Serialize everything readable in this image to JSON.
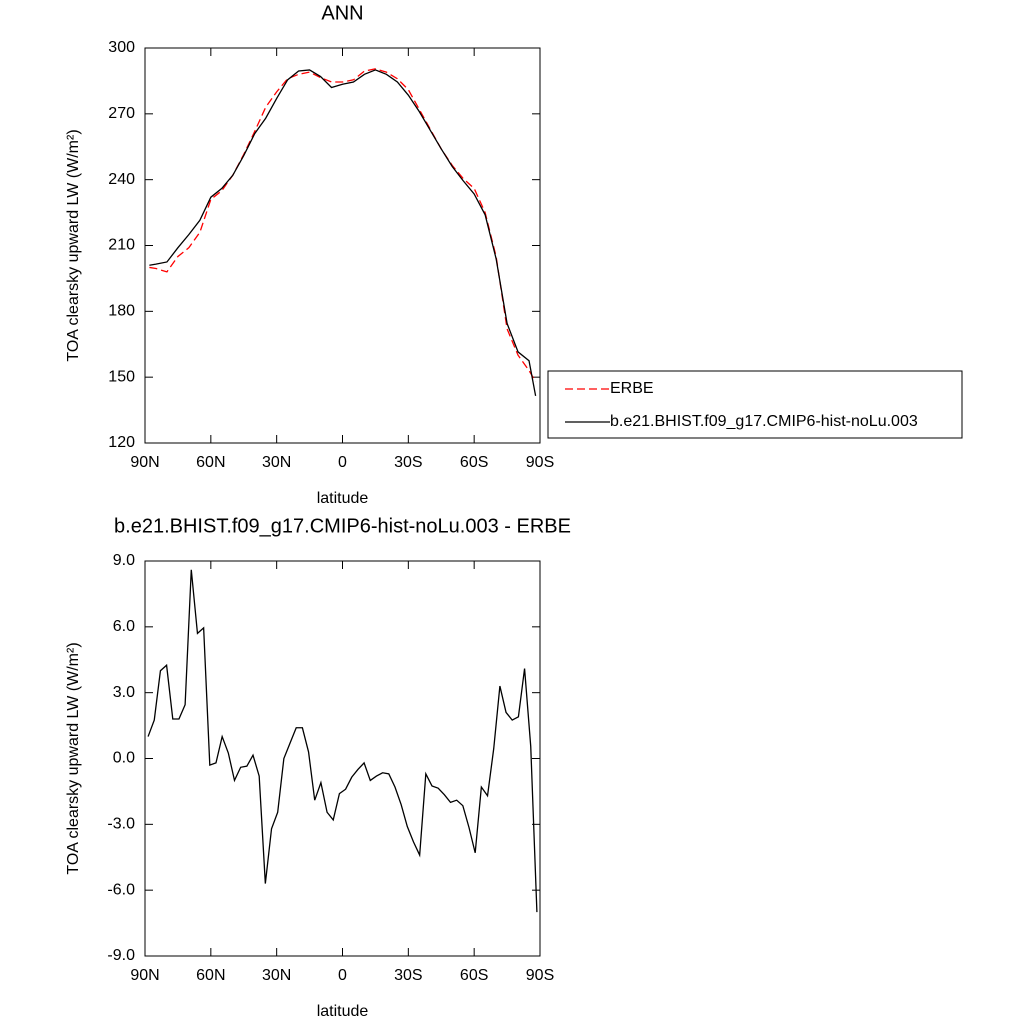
{
  "chart_data": [
    {
      "type": "line",
      "title": "ANN",
      "xlabel": "latitude",
      "ylabel": "TOA clearsky upward LW (W/m²)",
      "xlim": [
        90,
        -90
      ],
      "xticks": [
        {
          "value": 90,
          "label": "90N"
        },
        {
          "value": 60,
          "label": "60N"
        },
        {
          "value": 30,
          "label": "30N"
        },
        0,
        {
          "value": -30,
          "label": "30S"
        },
        {
          "value": -60,
          "label": "60S"
        },
        {
          "value": -90,
          "label": "90S"
        }
      ],
      "ylim": [
        120,
        300
      ],
      "yticks": [
        120,
        150,
        180,
        210,
        240,
        270,
        300
      ],
      "legend": "right",
      "x": [
        88,
        85,
        80,
        75,
        70,
        65,
        60,
        55,
        50,
        45,
        40,
        35,
        30,
        25,
        20,
        15,
        10,
        5,
        0,
        -5,
        -10,
        -15,
        -20,
        -25,
        -30,
        -35,
        -40,
        -45,
        -50,
        -55,
        -60,
        -65,
        -70,
        -75,
        -80,
        -85,
        -88
      ],
      "series": [
        {
          "name": "ERBE",
          "color": "#ff0000",
          "dash": true,
          "values": [
            200,
            199.5,
            198,
            205,
            209,
            216,
            231,
            235,
            242,
            251.5,
            262,
            273,
            280,
            286,
            288,
            289,
            286.5,
            284.5,
            284.5,
            285.5,
            289.5,
            290.5,
            289,
            286,
            281,
            272,
            263,
            254,
            246.5,
            240.5,
            236,
            225,
            205,
            172,
            160,
            153,
            148
          ]
        },
        {
          "name": "b.e21.BHIST.f09_g17.CMIP6-hist-noLu.003",
          "color": "#000000",
          "dash": false,
          "values": [
            201,
            201.5,
            202.5,
            209,
            215,
            221.5,
            232,
            236,
            242,
            251,
            261,
            268,
            277,
            285.5,
            289.5,
            290,
            287,
            282,
            283.5,
            284.5,
            288,
            290,
            288,
            284.5,
            278.5,
            271,
            262.5,
            254,
            246,
            239.5,
            233.5,
            224,
            204,
            174.5,
            161.5,
            157.5,
            141.5
          ]
        }
      ]
    },
    {
      "type": "line",
      "title": "b.e21.BHIST.f09_g17.CMIP6-hist-noLu.003 - ERBE",
      "xlabel": "latitude",
      "ylabel": "TOA clearsky upward LW (W/m²)",
      "xlim": [
        90,
        -90
      ],
      "xticks": [
        {
          "value": 90,
          "label": "90N"
        },
        {
          "value": 60,
          "label": "60N"
        },
        {
          "value": 30,
          "label": "30N"
        },
        0,
        {
          "value": -30,
          "label": "30S"
        },
        {
          "value": -60,
          "label": "60S"
        },
        {
          "value": -90,
          "label": "90S"
        }
      ],
      "ylim": [
        -9,
        9
      ],
      "yticks": [
        {
          "value": -9,
          "label": "-9.0"
        },
        {
          "value": -6,
          "label": "-6.0"
        },
        {
          "value": -3,
          "label": "-3.0"
        },
        {
          "value": 0,
          "label": "0.0"
        },
        {
          "value": 3,
          "label": "3.0"
        },
        {
          "value": 6,
          "label": "6.0"
        },
        {
          "value": 9,
          "label": "9.0"
        }
      ],
      "x": [
        88.59,
        85.78,
        82.97,
        80.16,
        77.34,
        74.53,
        71.72,
        68.91,
        66.09,
        63.28,
        60.47,
        57.66,
        54.84,
        52.03,
        49.22,
        46.41,
        43.59,
        40.78,
        37.97,
        35.16,
        32.34,
        29.53,
        26.72,
        23.91,
        21.09,
        18.28,
        15.47,
        12.66,
        9.84,
        7.03,
        4.22,
        1.41,
        -1.41,
        -4.22,
        -7.03,
        -9.84,
        -12.66,
        -15.47,
        -18.28,
        -21.09,
        -23.91,
        -26.72,
        -29.53,
        -32.34,
        -35.16,
        -37.97,
        -40.78,
        -43.59,
        -46.41,
        -49.22,
        -52.03,
        -54.84,
        -57.66,
        -60.47,
        -63.28,
        -66.09,
        -68.91,
        -71.72,
        -74.53,
        -77.34,
        -80.16,
        -82.97,
        -85.78,
        -88.59
      ],
      "series": [
        {
          "color": "#000000",
          "dash": false,
          "values": [
            1.0,
            1.75,
            4.0,
            4.25,
            1.8,
            1.8,
            2.45,
            8.6,
            5.7,
            5.95,
            -0.3,
            -0.2,
            1.0,
            0.25,
            -1.0,
            -0.4,
            -0.35,
            0.15,
            -0.8,
            -5.7,
            -3.2,
            -2.45,
            0.0,
            0.7,
            1.4,
            1.4,
            0.3,
            -1.9,
            -1.1,
            -2.45,
            -2.8,
            -1.6,
            -1.4,
            -0.85,
            -0.5,
            -0.2,
            -1.0,
            -0.8,
            -0.65,
            -0.7,
            -1.3,
            -2.1,
            -3.1,
            -3.8,
            -4.4,
            -0.7,
            -1.25,
            -1.35,
            -1.65,
            -2.0,
            -1.9,
            -2.15,
            -3.15,
            -4.3,
            -1.3,
            -1.7,
            0.45,
            3.3,
            2.1,
            1.75,
            1.9,
            4.1,
            0.55,
            -7.0
          ]
        }
      ]
    }
  ]
}
